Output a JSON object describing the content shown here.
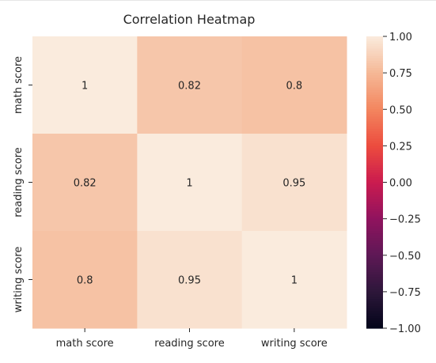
{
  "chart_data": {
    "type": "heatmap",
    "title": "Correlation Heatmap",
    "x_categories": [
      "math score",
      "reading score",
      "writing score"
    ],
    "y_categories": [
      "math score",
      "reading score",
      "writing score"
    ],
    "values": [
      [
        1,
        0.82,
        0.8
      ],
      [
        0.82,
        1,
        0.95
      ],
      [
        0.8,
        0.95,
        1
      ]
    ],
    "cell_labels": [
      [
        "1",
        "0.82",
        "0.8"
      ],
      [
        "0.82",
        "1",
        "0.95"
      ],
      [
        "0.8",
        "0.95",
        "1"
      ]
    ],
    "color_range": [
      -1.0,
      1.0
    ],
    "colormap": "rocket",
    "colorbar_ticks": [
      1.0,
      0.75,
      0.5,
      0.25,
      0.0,
      -0.25,
      -0.5,
      -0.75,
      -1.0
    ],
    "colorbar_tick_labels": [
      "1.00",
      "0.75",
      "0.50",
      "0.25",
      "0.00",
      "−0.25",
      "−0.50",
      "−0.75",
      "−1.00"
    ],
    "legend_placement": "right",
    "grid": false
  }
}
